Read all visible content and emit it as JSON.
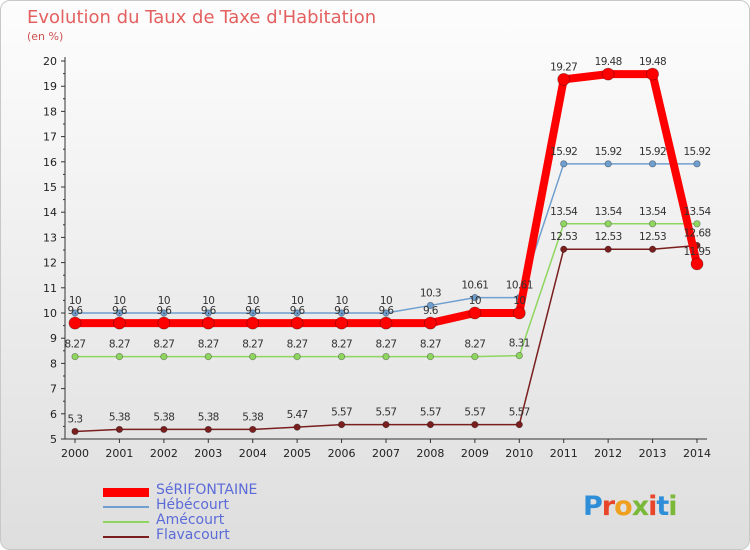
{
  "title": "Evolution du Taux de Taxe d'Habitation",
  "unit_label": "(en %)",
  "logo": {
    "text": "Proxiti",
    "letter_colors": [
      "#2e8ed8",
      "#e8462a",
      "#f0a020",
      "#7ab83a",
      "#e8462a",
      "#2e8ed8",
      "#7ab83a"
    ]
  },
  "chart_data": {
    "type": "line",
    "x": [
      2000,
      2001,
      2002,
      2003,
      2004,
      2005,
      2006,
      2007,
      2008,
      2009,
      2010,
      2011,
      2012,
      2013,
      2014
    ],
    "ylim": [
      5,
      20
    ],
    "yticks": [
      5,
      6,
      7,
      8,
      9,
      10,
      11,
      12,
      13,
      14,
      15,
      16,
      17,
      18,
      19,
      20
    ],
    "grid": false,
    "legend_position": "bottom-left",
    "series": [
      {
        "name": "SéRIFONTAINE",
        "color": "#ff0000",
        "width": 8,
        "point_radius": 6,
        "show_labels": true,
        "values": [
          9.6,
          9.6,
          9.6,
          9.6,
          9.6,
          9.6,
          9.6,
          9.6,
          9.6,
          10,
          10,
          19.27,
          19.48,
          19.48,
          11.95
        ],
        "labels": [
          "9.6",
          "9.6",
          "9.6",
          "9.6",
          "9.6",
          "9.6",
          "9.6",
          "9.6",
          "9.6",
          "10",
          "10",
          "19.27",
          "19.48",
          "19.48",
          "11.95"
        ]
      },
      {
        "name": "Hébécourt",
        "color": "#6f9fcf",
        "width": 1.5,
        "point_radius": 3.2,
        "show_labels": true,
        "values": [
          10,
          10,
          10,
          10,
          10,
          10,
          10,
          10,
          10.3,
          10.61,
          10.61,
          15.92,
          15.92,
          15.92,
          15.92
        ],
        "labels": [
          "10",
          "10",
          "10",
          "10",
          "10",
          "10",
          "10",
          "10",
          "10.3",
          "10.61",
          "10.61",
          "15.92",
          "15.92",
          "15.92",
          "15.92"
        ]
      },
      {
        "name": "Amécourt",
        "color": "#8ed65f",
        "width": 1.5,
        "point_radius": 3.2,
        "show_labels": true,
        "values": [
          8.27,
          8.27,
          8.27,
          8.27,
          8.27,
          8.27,
          8.27,
          8.27,
          8.27,
          8.27,
          8.31,
          13.54,
          13.54,
          13.54,
          13.54
        ],
        "labels": [
          "8.27",
          "8.27",
          "8.27",
          "8.27",
          "8.27",
          "8.27",
          "8.27",
          "8.27",
          "8.27",
          "8.27",
          "8.31",
          "13.54",
          "13.54",
          "13.54",
          "13.54"
        ]
      },
      {
        "name": "Flavacourt",
        "color": "#7a1e1e",
        "width": 1.5,
        "point_radius": 3.2,
        "show_labels": true,
        "values": [
          5.3,
          5.38,
          5.38,
          5.38,
          5.38,
          5.47,
          5.57,
          5.57,
          5.57,
          5.57,
          5.57,
          12.53,
          12.53,
          12.53,
          12.68
        ],
        "labels": [
          "5.3",
          "5.38",
          "5.38",
          "5.38",
          "5.38",
          "5.47",
          "5.57",
          "5.57",
          "5.57",
          "5.57",
          "5.57",
          "12.53",
          "12.53",
          "12.53",
          "12.68"
        ]
      }
    ]
  }
}
